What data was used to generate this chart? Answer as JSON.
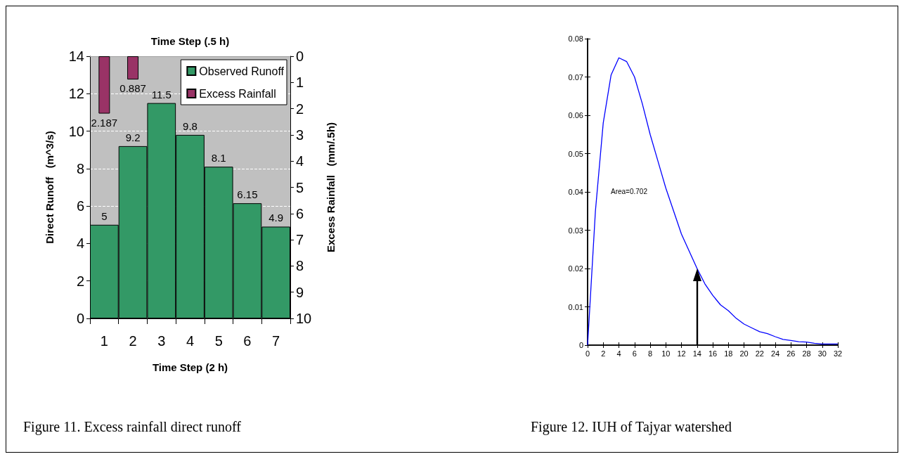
{
  "chart_data": [
    {
      "type": "bar",
      "xlabel": "Time Step (2 h)",
      "x2label": "Time Step (.5 h)",
      "ylabel": "Direct Runoff   (m^3/s)",
      "y2label": "Excess Rainfall   (mm/.5h)",
      "categories": [
        "1",
        "2",
        "3",
        "4",
        "5",
        "6",
        "7"
      ],
      "series": [
        {
          "name": "Observed Runoff",
          "color": "#339966",
          "values": [
            5,
            9.2,
            11.5,
            9.8,
            8.1,
            6.15,
            4.9
          ]
        },
        {
          "name": "Excess Rainfall",
          "color": "#993366",
          "axis": "y2",
          "values": [
            2.187,
            0.887,
            null,
            null,
            null,
            null,
            null
          ]
        }
      ],
      "ylim": [
        0,
        14
      ],
      "yticks": [
        0,
        2,
        4,
        6,
        8,
        10,
        12,
        14
      ],
      "y2lim": [
        10,
        0
      ],
      "y2ticks": [
        0,
        1,
        2,
        3,
        4,
        5,
        6,
        7,
        8,
        9,
        10
      ],
      "grid": "y",
      "legend": "top right",
      "data_labels": true,
      "annotations": [
        "Figure 11. Excess rainfall direct runoff"
      ]
    },
    {
      "type": "line",
      "x": [
        0,
        1,
        2,
        3,
        4,
        5,
        6,
        7,
        8,
        9,
        10,
        11,
        12,
        13,
        14,
        15,
        16,
        17,
        18,
        19,
        20,
        21,
        22,
        23,
        24,
        25,
        26,
        27,
        28,
        29,
        30,
        31,
        32
      ],
      "series": [
        {
          "color": "#0000ff",
          "values": [
            0,
            0.035,
            0.058,
            0.0705,
            0.075,
            0.074,
            0.07,
            0.063,
            0.055,
            0.048,
            0.041,
            0.035,
            0.029,
            0.0245,
            0.02,
            0.016,
            0.013,
            0.0105,
            0.009,
            0.007,
            0.0055,
            0.0045,
            0.0035,
            0.003,
            0.0022,
            0.0015,
            0.0012,
            0.0009,
            0.0008,
            0.0005,
            0.0003,
            0.0003,
            0.0003
          ]
        }
      ],
      "xlim": [
        0,
        32
      ],
      "xticks": [
        0,
        2,
        4,
        6,
        8,
        10,
        12,
        14,
        16,
        18,
        20,
        22,
        24,
        26,
        28,
        30,
        32
      ],
      "ylim": [
        0,
        0.08
      ],
      "yticks": [
        0,
        0.01,
        0.02,
        0.03,
        0.04,
        0.05,
        0.06,
        0.07,
        0.08
      ],
      "grid": false,
      "legend": false,
      "marker": "none",
      "line_style": "solid",
      "annotations": [
        "Area=0.702",
        "Figure 12. IUH of Tajyar watershed"
      ]
    }
  ]
}
